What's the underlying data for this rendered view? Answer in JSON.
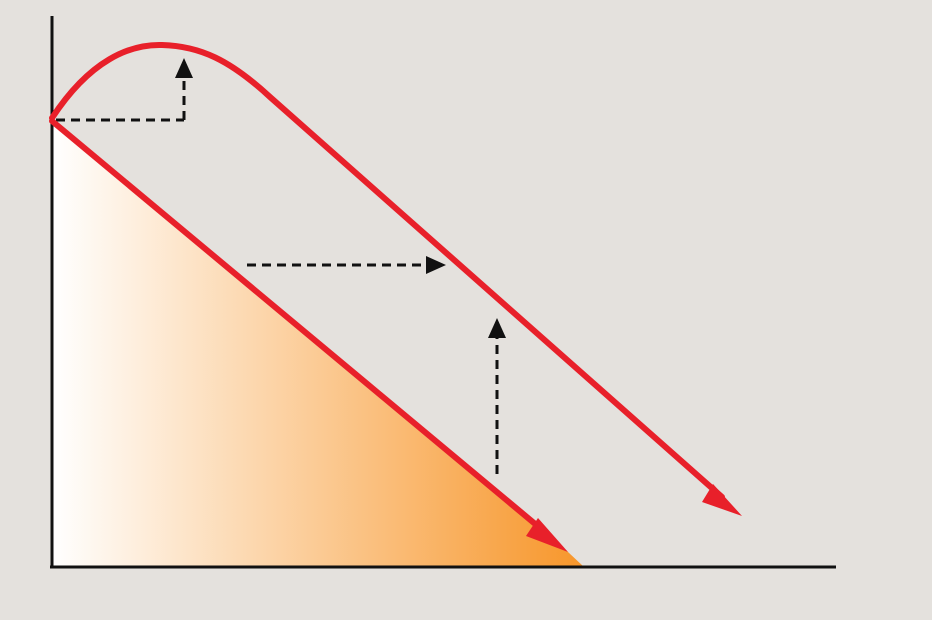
{
  "colors": {
    "background": "#e4e1dd",
    "axis": "#111111",
    "curve": "#e8202a",
    "dashed_arrow": "#111111",
    "fill_start": "#ffffff",
    "fill_end": "#f7962a"
  },
  "diagram": {
    "description_labels": [],
    "elements": [
      "y-axis",
      "x-axis",
      "shaded-triangle-area",
      "lower-straight-arrow",
      "upper-hump-curve-arrow",
      "dashed-horizontal-arrow-top",
      "dashed-vertical-arrow-top",
      "dashed-horizontal-arrow-middle",
      "dashed-vertical-arrow-lower"
    ]
  }
}
